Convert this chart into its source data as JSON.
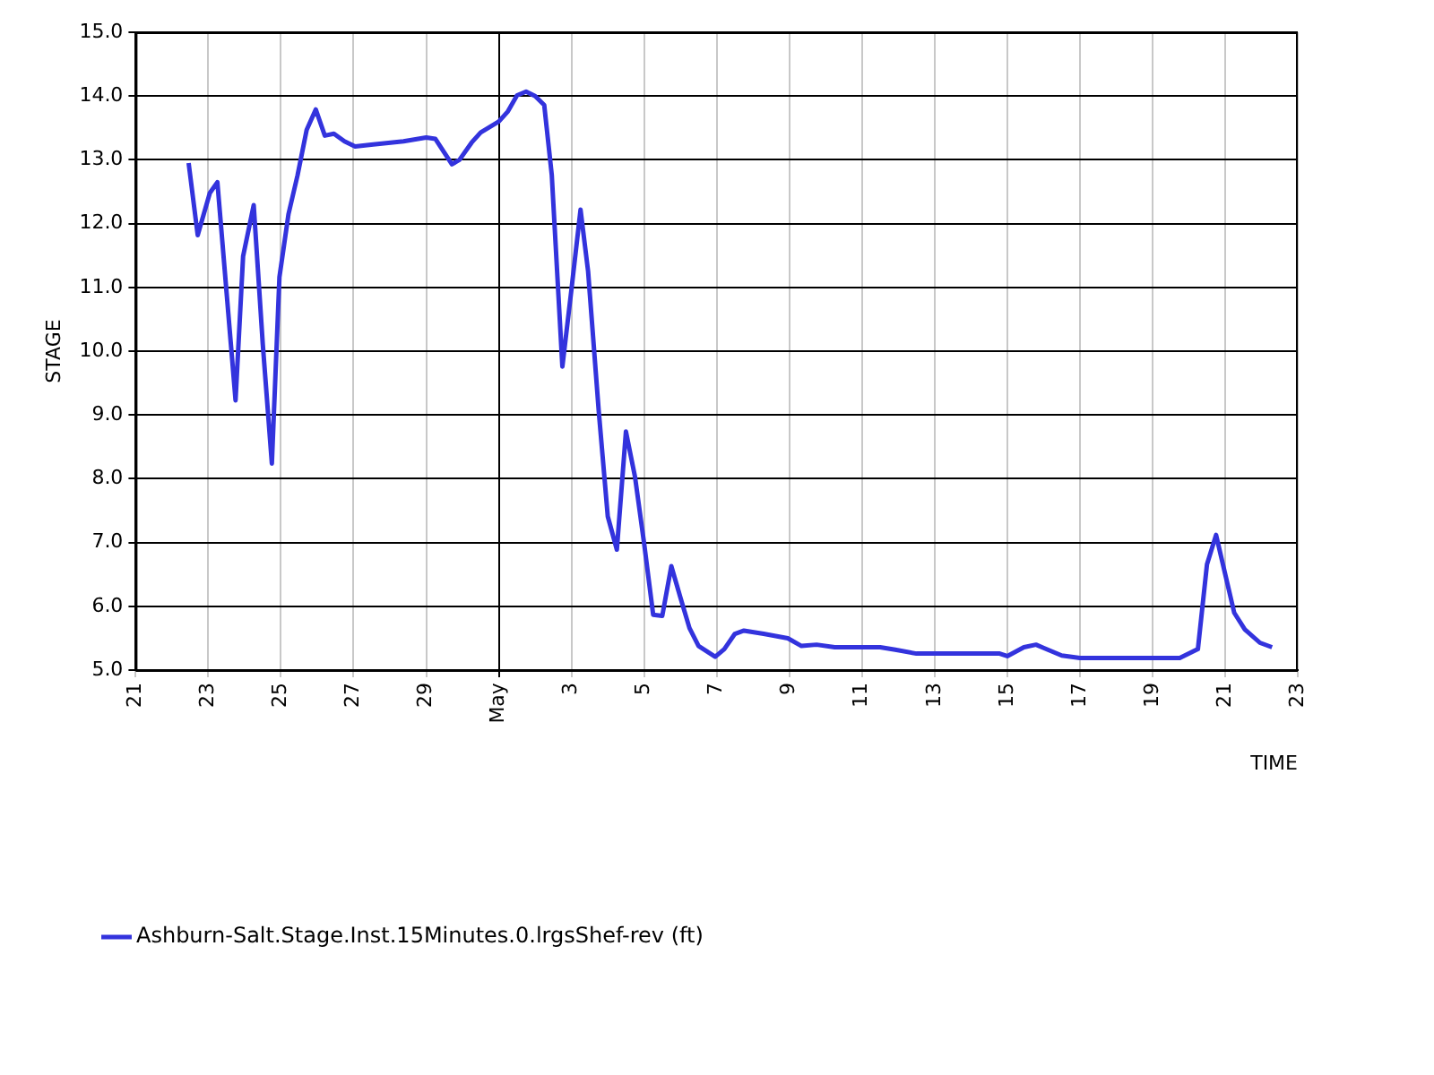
{
  "chart_data": {
    "type": "line",
    "xlabel": "TIME",
    "ylabel": "STAGE",
    "x": [
      "--04-22T11:00",
      "--04-22T17:00",
      "--04-23T01:00",
      "--04-23T06:00",
      "--04-23T18:00",
      "--04-23T23:00",
      "--04-24T06:00",
      "--04-24T12:00",
      "--04-24T18:00",
      "--04-24T23:00",
      "--04-25T05:00",
      "--04-25T11:00",
      "--04-25T17:00",
      "--04-25T23:00",
      "--04-26T05:00",
      "--04-26T11:00",
      "--04-26T18:00",
      "--04-27T01:00",
      "--04-27T13:00",
      "--04-28T09:00",
      "--04-29T00:00",
      "--04-29T06:00",
      "--04-29T17:00",
      "--04-29T22:00",
      "--04-30T06:00",
      "--04-30T12:00",
      "--05-01T00:00",
      "--05-01T06:00",
      "--05-01T12:00",
      "--05-01T18:00",
      "--05-02T00:00",
      "--05-02T06:00",
      "--05-02T11:00",
      "--05-02T18:00",
      "--05-03T00:00",
      "--05-03T06:00",
      "--05-03T11:00",
      "--05-03T18:00",
      "--05-04T00:00",
      "--05-04T06:00",
      "--05-04T12:00",
      "--05-04T18:00",
      "--05-05T00:00",
      "--05-05T06:00",
      "--05-05T12:00",
      "--05-05T18:00",
      "--05-06T00:00",
      "--05-06T06:00",
      "--05-06T12:00",
      "--05-06T23:00",
      "--05-07T05:00",
      "--05-07T12:00",
      "--05-07T18:00",
      "--05-08T07:00",
      "--05-08T23:00",
      "--05-09T08:00",
      "--05-09T18:00",
      "--05-10T06:00",
      "--05-11T12:00",
      "--05-11T22:00",
      "--05-12T12:00",
      "--05-14T19:00",
      "--05-15T00:00",
      "--05-15T11:00",
      "--05-15T19:00",
      "--05-16T00:00",
      "--05-16T12:00",
      "--05-17T00:00",
      "--05-19T18:00",
      "--05-20T06:00",
      "--05-20T12:00",
      "--05-20T18:00",
      "--05-21T00:00",
      "--05-21T06:00",
      "--05-21T13:00",
      "--05-21T23:00",
      "--05-22T07:00"
    ],
    "series": [
      {
        "name": "Ashburn-Salt.Stage.Inst.15Minutes.0.lrgsShef-rev (ft)",
        "color": "#3333dd",
        "values": [
          12.95,
          11.82,
          12.48,
          12.65,
          9.23,
          11.49,
          12.29,
          10.11,
          8.24,
          11.16,
          12.15,
          12.76,
          13.47,
          13.79,
          13.38,
          13.41,
          13.29,
          13.21,
          13.24,
          13.29,
          13.35,
          13.33,
          12.93,
          13.0,
          13.27,
          13.43,
          13.6,
          13.76,
          14.01,
          14.07,
          14.0,
          13.86,
          12.76,
          9.76,
          10.97,
          12.22,
          11.25,
          9.07,
          7.41,
          6.89,
          8.74,
          8.03,
          6.99,
          5.87,
          5.85,
          6.63,
          6.14,
          5.66,
          5.38,
          5.21,
          5.33,
          5.57,
          5.62,
          5.57,
          5.5,
          5.38,
          5.4,
          5.36,
          5.36,
          5.32,
          5.26,
          5.26,
          5.22,
          5.36,
          5.4,
          5.35,
          5.23,
          5.19,
          5.19,
          5.33,
          6.66,
          7.12,
          6.51,
          5.9,
          5.64,
          5.43,
          5.36
        ]
      }
    ],
    "xlim": [
      "--04-21",
      "--05-23"
    ],
    "xticks": [
      {
        "value": "--04-21",
        "label": "21"
      },
      {
        "value": "--04-23",
        "label": "23"
      },
      {
        "value": "--04-25",
        "label": "25"
      },
      {
        "value": "--04-27",
        "label": "27"
      },
      {
        "value": "--04-29",
        "label": "29"
      },
      {
        "value": "--05-01",
        "label": "May"
      },
      {
        "value": "--05-03",
        "label": "3"
      },
      {
        "value": "--05-05",
        "label": "5"
      },
      {
        "value": "--05-07",
        "label": "7"
      },
      {
        "value": "--05-09",
        "label": "9"
      },
      {
        "value": "--05-11",
        "label": "11"
      },
      {
        "value": "--05-13",
        "label": "13"
      },
      {
        "value": "--05-15",
        "label": "15"
      },
      {
        "value": "--05-17",
        "label": "17"
      },
      {
        "value": "--05-19",
        "label": "19"
      },
      {
        "value": "--05-21",
        "label": "21"
      },
      {
        "value": "--05-23",
        "label": "23"
      }
    ],
    "ylim": [
      5,
      15
    ],
    "yticks": [
      {
        "value": 5,
        "label": "5.0"
      },
      {
        "value": 6,
        "label": "6.0"
      },
      {
        "value": 7,
        "label": "7.0"
      },
      {
        "value": 8,
        "label": "8.0"
      },
      {
        "value": 9,
        "label": "9.0"
      },
      {
        "value": 10,
        "label": "10.0"
      },
      {
        "value": 11,
        "label": "11.0"
      },
      {
        "value": 12,
        "label": "12.0"
      },
      {
        "value": 13,
        "label": "13.0"
      },
      {
        "value": 14,
        "label": "14.0"
      },
      {
        "value": 15,
        "label": "15.0"
      }
    ],
    "grid": true,
    "legend": "bottom left",
    "marker": "none",
    "line_style": "solid"
  }
}
